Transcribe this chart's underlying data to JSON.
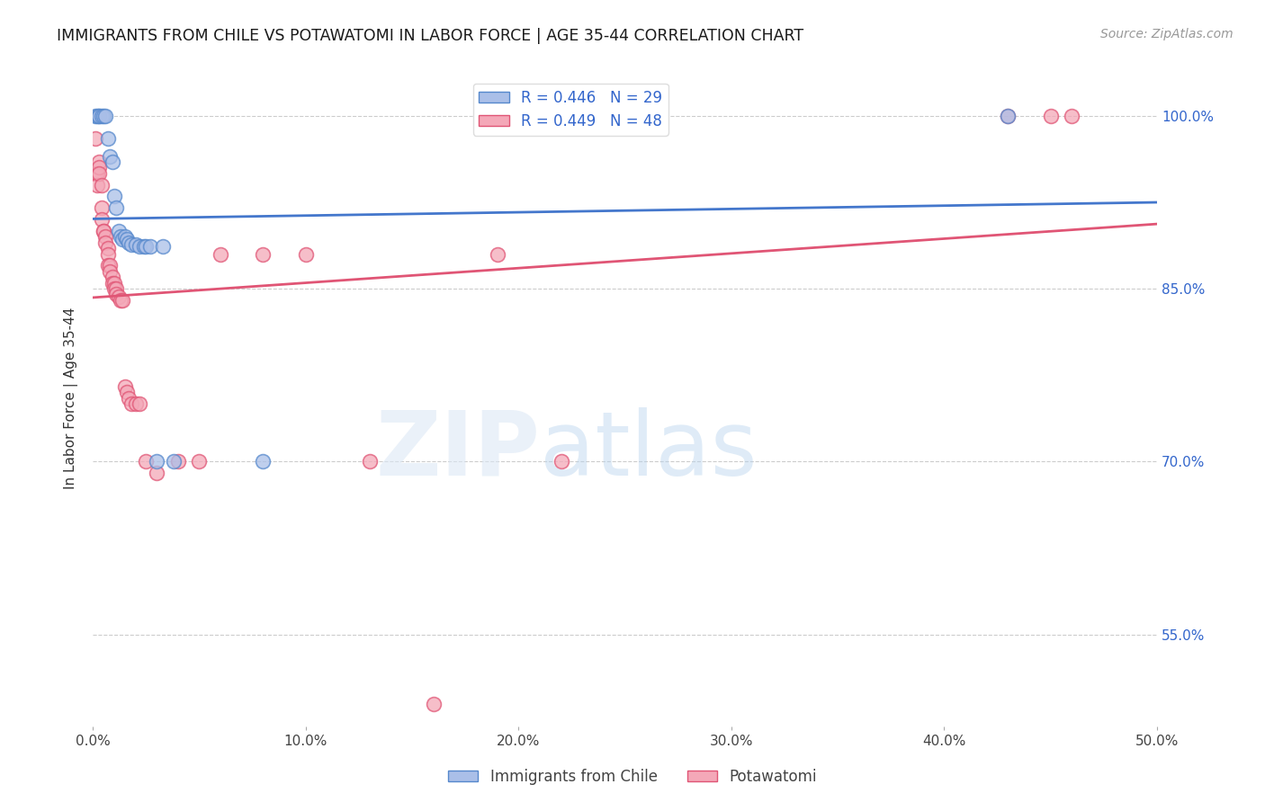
{
  "title": "IMMIGRANTS FROM CHILE VS POTAWATOMI IN LABOR FORCE | AGE 35-44 CORRELATION CHART",
  "source_text": "Source: ZipAtlas.com",
  "ylabel": "In Labor Force | Age 35-44",
  "xlim": [
    0.0,
    0.5
  ],
  "ylim": [
    0.47,
    1.04
  ],
  "xtick_labels": [
    "0.0%",
    "10.0%",
    "20.0%",
    "30.0%",
    "40.0%",
    "50.0%"
  ],
  "xtick_vals": [
    0.0,
    0.1,
    0.2,
    0.3,
    0.4,
    0.5
  ],
  "ytick_labels": [
    "55.0%",
    "70.0%",
    "85.0%",
    "100.0%"
  ],
  "ytick_vals": [
    0.55,
    0.7,
    0.85,
    1.0
  ],
  "legend_entries": [
    {
      "label": "R = 0.446   N = 29",
      "color": "#6699cc"
    },
    {
      "label": "R = 0.449   N = 48",
      "color": "#ff99aa"
    }
  ],
  "chile_color": "#aabfe8",
  "potawatomi_color": "#f4a8b8",
  "chile_edge_color": "#5588cc",
  "potawatomi_edge_color": "#e05575",
  "chile_line_color": "#4477cc",
  "potawatomi_line_color": "#e05575",
  "background_color": "#ffffff",
  "chile_points": [
    [
      0.001,
      1.0
    ],
    [
      0.002,
      1.0
    ],
    [
      0.003,
      1.0
    ],
    [
      0.003,
      1.0
    ],
    [
      0.004,
      1.0
    ],
    [
      0.005,
      1.0
    ],
    [
      0.006,
      1.0
    ],
    [
      0.007,
      0.98
    ],
    [
      0.008,
      0.965
    ],
    [
      0.009,
      0.96
    ],
    [
      0.01,
      0.93
    ],
    [
      0.011,
      0.92
    ],
    [
      0.012,
      0.9
    ],
    [
      0.013,
      0.895
    ],
    [
      0.014,
      0.893
    ],
    [
      0.015,
      0.895
    ],
    [
      0.016,
      0.893
    ],
    [
      0.017,
      0.89
    ],
    [
      0.018,
      0.888
    ],
    [
      0.02,
      0.888
    ],
    [
      0.022,
      0.887
    ],
    [
      0.024,
      0.887
    ],
    [
      0.025,
      0.887
    ],
    [
      0.027,
      0.887
    ],
    [
      0.03,
      0.7
    ],
    [
      0.033,
      0.887
    ],
    [
      0.038,
      0.7
    ],
    [
      0.08,
      0.7
    ],
    [
      0.43,
      1.0
    ]
  ],
  "potawatomi_points": [
    [
      0.001,
      0.98
    ],
    [
      0.001,
      0.95
    ],
    [
      0.002,
      0.95
    ],
    [
      0.002,
      0.94
    ],
    [
      0.003,
      0.96
    ],
    [
      0.003,
      0.955
    ],
    [
      0.003,
      0.95
    ],
    [
      0.004,
      0.94
    ],
    [
      0.004,
      0.92
    ],
    [
      0.004,
      0.91
    ],
    [
      0.005,
      0.9
    ],
    [
      0.005,
      0.9
    ],
    [
      0.006,
      0.895
    ],
    [
      0.006,
      0.89
    ],
    [
      0.007,
      0.885
    ],
    [
      0.007,
      0.88
    ],
    [
      0.007,
      0.87
    ],
    [
      0.008,
      0.87
    ],
    [
      0.008,
      0.865
    ],
    [
      0.009,
      0.86
    ],
    [
      0.009,
      0.855
    ],
    [
      0.01,
      0.855
    ],
    [
      0.01,
      0.85
    ],
    [
      0.011,
      0.85
    ],
    [
      0.011,
      0.845
    ],
    [
      0.012,
      0.843
    ],
    [
      0.013,
      0.84
    ],
    [
      0.014,
      0.84
    ],
    [
      0.015,
      0.765
    ],
    [
      0.016,
      0.76
    ],
    [
      0.017,
      0.755
    ],
    [
      0.018,
      0.75
    ],
    [
      0.02,
      0.75
    ],
    [
      0.022,
      0.75
    ],
    [
      0.025,
      0.7
    ],
    [
      0.03,
      0.69
    ],
    [
      0.04,
      0.7
    ],
    [
      0.05,
      0.7
    ],
    [
      0.06,
      0.88
    ],
    [
      0.08,
      0.88
    ],
    [
      0.1,
      0.88
    ],
    [
      0.13,
      0.7
    ],
    [
      0.16,
      0.49
    ],
    [
      0.19,
      0.88
    ],
    [
      0.22,
      0.7
    ],
    [
      0.43,
      1.0
    ],
    [
      0.45,
      1.0
    ],
    [
      0.46,
      1.0
    ]
  ]
}
